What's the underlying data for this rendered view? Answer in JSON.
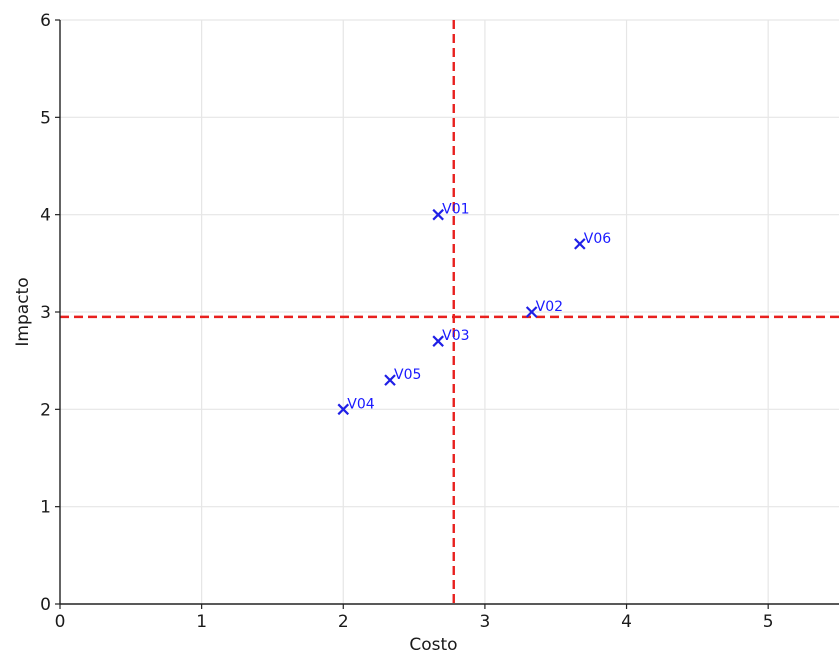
{
  "chart_data": {
    "type": "scatter",
    "title": "",
    "xlabel": "Costo",
    "ylabel": "Impacto",
    "xlim": [
      0,
      5.5
    ],
    "ylim": [
      0,
      6
    ],
    "xticks": [
      0,
      1,
      2,
      3,
      4,
      5
    ],
    "yticks": [
      0,
      1,
      2,
      3,
      4,
      5,
      6
    ],
    "grid": true,
    "marker": "x",
    "marker_color": "#1f1fe6",
    "reference_color": "#e8201e",
    "points": [
      {
        "label": "V01",
        "x": 2.67,
        "y": 4.0
      },
      {
        "label": "V02",
        "x": 3.33,
        "y": 3.0
      },
      {
        "label": "V03",
        "x": 2.67,
        "y": 2.7
      },
      {
        "label": "V04",
        "x": 2.0,
        "y": 2.0
      },
      {
        "label": "V05",
        "x": 2.33,
        "y": 2.3
      },
      {
        "label": "V06",
        "x": 3.67,
        "y": 3.7
      }
    ],
    "reference_lines": {
      "x_mean": 2.78,
      "y_mean": 2.95,
      "style": "dashed"
    }
  }
}
